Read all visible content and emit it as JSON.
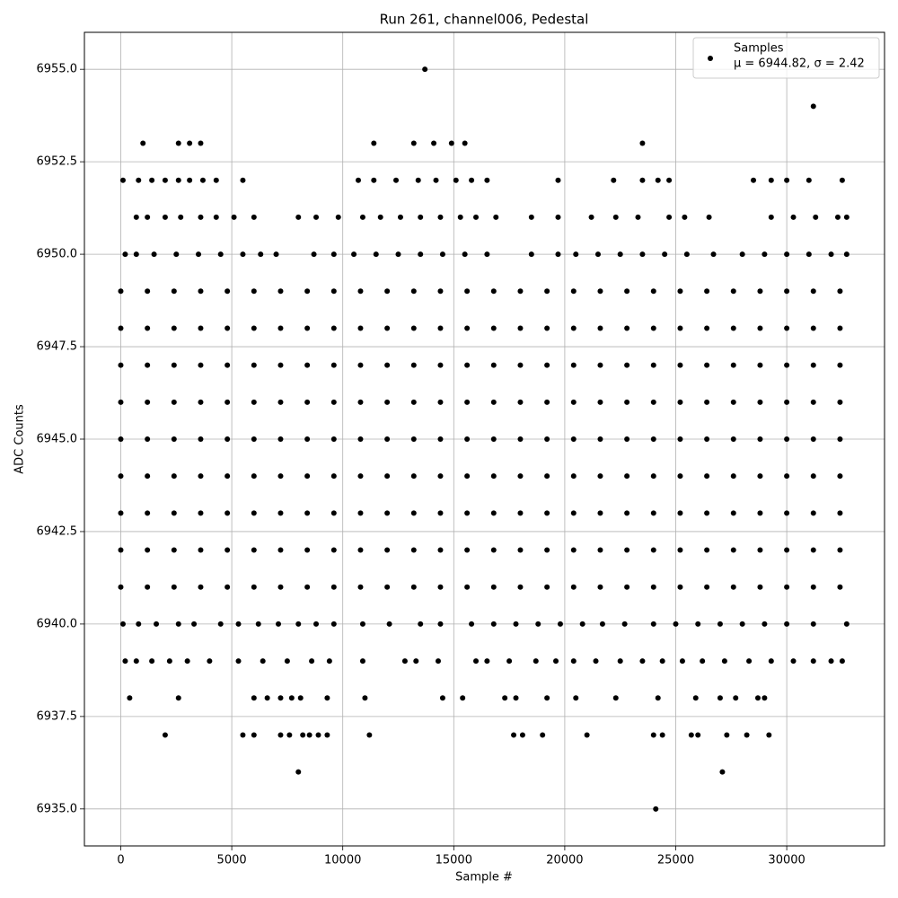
{
  "chart_data": {
    "type": "scatter",
    "title": "Run 261, channel006, Pedestal",
    "x_label": "Sample #",
    "y_label": "ADC Counts",
    "xlim": [
      -1638,
      34405
    ],
    "ylim": [
      6934,
      6956
    ],
    "xticks": [
      0,
      5000,
      10000,
      15000,
      20000,
      25000,
      30000
    ],
    "yticks": [
      {
        "value": 6935,
        "label": "6935.0"
      },
      {
        "value": 6937.5,
        "label": "6937.5"
      },
      {
        "value": 6940,
        "label": "6940.0"
      },
      {
        "value": 6942.5,
        "label": "6942.5"
      },
      {
        "value": 6945,
        "label": "6945.0"
      },
      {
        "value": 6947.5,
        "label": "6947.5"
      },
      {
        "value": 6950,
        "label": "6950.0"
      },
      {
        "value": 6952.5,
        "label": "6952.5"
      },
      {
        "value": 6955,
        "label": "6955.0"
      }
    ],
    "grid": true,
    "legend": "upper right",
    "legend_note": "μ = 6944.82, σ = 2.42",
    "series": [
      {
        "name": "Samples",
        "color": "#000000",
        "x": [
          0,
          1200,
          2400,
          3600,
          4800,
          6000,
          7200,
          8400,
          9600,
          10800,
          12000,
          13200,
          14400,
          15600,
          16800,
          18000,
          19200,
          20400,
          21600,
          22800,
          24000,
          25200,
          26400,
          27600,
          28800,
          30000,
          31200,
          32400,
          0,
          1200,
          2400,
          3600,
          4800,
          6000,
          7200,
          8400,
          9600,
          10800,
          12000,
          13200,
          14400,
          15600,
          16800,
          18000,
          19200,
          20400,
          21600,
          22800,
          24000,
          25200,
          26400,
          27600,
          28800,
          30000,
          31200,
          32400,
          0,
          1200,
          2400,
          3600,
          4800,
          6000,
          7200,
          8400,
          9600,
          10800,
          12000,
          13200,
          14400,
          15600,
          16800,
          18000,
          19200,
          20400,
          21600,
          22800,
          24000,
          25200,
          26400,
          27600,
          28800,
          30000,
          31200,
          32400,
          0,
          1200,
          2400,
          3600,
          4800,
          6000,
          7200,
          8400,
          9600,
          10800,
          12000,
          13200,
          14400,
          15600,
          16800,
          18000,
          19200,
          20400,
          21600,
          22800,
          24000,
          25200,
          26400,
          27600,
          28800,
          30000,
          31200,
          32400,
          0,
          1200,
          2400,
          3600,
          4800,
          6000,
          7200,
          8400,
          9600,
          10800,
          12000,
          13200,
          14400,
          15600,
          16800,
          18000,
          19200,
          20400,
          21600,
          22800,
          24000,
          25200,
          26400,
          27600,
          28800,
          30000,
          31200,
          32400,
          0,
          1200,
          2400,
          3600,
          4800,
          6000,
          7200,
          8400,
          9600,
          10800,
          12000,
          13200,
          14400,
          15600,
          16800,
          18000,
          19200,
          20400,
          21600,
          22800,
          24000,
          25200,
          26400,
          27600,
          28800,
          30000,
          31200,
          32400,
          0,
          1200,
          2400,
          3600,
          4800,
          6000,
          7200,
          8400,
          9600,
          10800,
          12000,
          13200,
          14400,
          15600,
          16800,
          18000,
          19200,
          20400,
          21600,
          22800,
          24000,
          25200,
          26400,
          27600,
          28800,
          30000,
          31200,
          32400,
          0,
          1200,
          2400,
          3600,
          4800,
          6000,
          7200,
          8400,
          9600,
          10800,
          12000,
          13200,
          14400,
          15600,
          16800,
          18000,
          19200,
          20400,
          21600,
          22800,
          24000,
          25200,
          26400,
          27600,
          28800,
          30000,
          31200,
          32400,
          0,
          1200,
          2400,
          3600,
          4800,
          6000,
          7200,
          8400,
          9600,
          10800,
          12000,
          13200,
          14400,
          15600,
          16800,
          18000,
          19200,
          20400,
          21600,
          22800,
          24000,
          25200,
          26400,
          27600,
          28800,
          30000,
          31200,
          32400,
          200,
          700,
          1500,
          2500,
          3500,
          4500,
          5500,
          6300,
          7000,
          8700,
          9600,
          10500,
          11500,
          12500,
          13500,
          14500,
          15500,
          16500,
          18500,
          19700,
          20500,
          21500,
          22500,
          23500,
          24500,
          25500,
          26700,
          28000,
          29000,
          30000,
          31000,
          32000,
          32700,
          100,
          800,
          1600,
          2600,
          3300,
          4500,
          5300,
          6200,
          7100,
          8000,
          8800,
          9600,
          10900,
          12100,
          13500,
          14400,
          15800,
          16800,
          17800,
          18800,
          19800,
          20800,
          21700,
          22700,
          24000,
          25000,
          26000,
          27000,
          28000,
          29000,
          30000,
          31200,
          32700,
          700,
          1200,
          2000,
          2700,
          3600,
          4300,
          5100,
          6000,
          8000,
          8800,
          9800,
          10900,
          11700,
          12600,
          13500,
          14400,
          15300,
          16000,
          16900,
          18500,
          19700,
          21200,
          22300,
          23300,
          24700,
          25400,
          26500,
          29300,
          30300,
          31300,
          32300,
          32700,
          200,
          700,
          1400,
          2200,
          3000,
          4000,
          5300,
          6400,
          7500,
          8600,
          9400,
          10900,
          12800,
          13300,
          14300,
          16000,
          16500,
          17500,
          18700,
          19600,
          20400,
          21400,
          22500,
          23500,
          24400,
          25300,
          26200,
          27200,
          28300,
          29300,
          30300,
          31200,
          32000,
          32500,
          100,
          800,
          1400,
          2000,
          2600,
          3100,
          3700,
          4300,
          5500,
          10700,
          11400,
          12400,
          13400,
          14200,
          15100,
          15800,
          16500,
          19700,
          22200,
          23500,
          24200,
          24700,
          28500,
          29300,
          30000,
          31000,
          32500,
          400,
          2600,
          6000,
          6600,
          7200,
          7700,
          8100,
          9300,
          11000,
          14500,
          15400,
          17300,
          17800,
          19200,
          20500,
          22300,
          24200,
          25900,
          27000,
          27700,
          28700,
          29000,
          1000,
          2600,
          3100,
          3600,
          11400,
          13200,
          14100,
          14900,
          15500,
          23500,
          2000,
          5500,
          6000,
          7200,
          7600,
          8200,
          8500,
          8900,
          9300,
          11200,
          17700,
          18100,
          19000,
          21000,
          24000,
          24400,
          25700,
          26000,
          27300,
          28200,
          29200,
          8000,
          27100,
          24100,
          31200,
          13700
        ],
        "values": [
          6941,
          6941,
          6941,
          6941,
          6941,
          6941,
          6941,
          6941,
          6941,
          6941,
          6941,
          6941,
          6941,
          6941,
          6941,
          6941,
          6941,
          6941,
          6941,
          6941,
          6941,
          6941,
          6941,
          6941,
          6941,
          6941,
          6941,
          6941,
          6942,
          6942,
          6942,
          6942,
          6942,
          6942,
          6942,
          6942,
          6942,
          6942,
          6942,
          6942,
          6942,
          6942,
          6942,
          6942,
          6942,
          6942,
          6942,
          6942,
          6942,
          6942,
          6942,
          6942,
          6942,
          6942,
          6942,
          6942,
          6943,
          6943,
          6943,
          6943,
          6943,
          6943,
          6943,
          6943,
          6943,
          6943,
          6943,
          6943,
          6943,
          6943,
          6943,
          6943,
          6943,
          6943,
          6943,
          6943,
          6943,
          6943,
          6943,
          6943,
          6943,
          6943,
          6943,
          6943,
          6944,
          6944,
          6944,
          6944,
          6944,
          6944,
          6944,
          6944,
          6944,
          6944,
          6944,
          6944,
          6944,
          6944,
          6944,
          6944,
          6944,
          6944,
          6944,
          6944,
          6944,
          6944,
          6944,
          6944,
          6944,
          6944,
          6944,
          6944,
          6945,
          6945,
          6945,
          6945,
          6945,
          6945,
          6945,
          6945,
          6945,
          6945,
          6945,
          6945,
          6945,
          6945,
          6945,
          6945,
          6945,
          6945,
          6945,
          6945,
          6945,
          6945,
          6945,
          6945,
          6945,
          6945,
          6945,
          6945,
          6946,
          6946,
          6946,
          6946,
          6946,
          6946,
          6946,
          6946,
          6946,
          6946,
          6946,
          6946,
          6946,
          6946,
          6946,
          6946,
          6946,
          6946,
          6946,
          6946,
          6946,
          6946,
          6946,
          6946,
          6946,
          6946,
          6946,
          6946,
          6947,
          6947,
          6947,
          6947,
          6947,
          6947,
          6947,
          6947,
          6947,
          6947,
          6947,
          6947,
          6947,
          6947,
          6947,
          6947,
          6947,
          6947,
          6947,
          6947,
          6947,
          6947,
          6947,
          6947,
          6947,
          6947,
          6947,
          6947,
          6948,
          6948,
          6948,
          6948,
          6948,
          6948,
          6948,
          6948,
          6948,
          6948,
          6948,
          6948,
          6948,
          6948,
          6948,
          6948,
          6948,
          6948,
          6948,
          6948,
          6948,
          6948,
          6948,
          6948,
          6948,
          6948,
          6948,
          6948,
          6949,
          6949,
          6949,
          6949,
          6949,
          6949,
          6949,
          6949,
          6949,
          6949,
          6949,
          6949,
          6949,
          6949,
          6949,
          6949,
          6949,
          6949,
          6949,
          6949,
          6949,
          6949,
          6949,
          6949,
          6949,
          6949,
          6949,
          6949,
          6950,
          6950,
          6950,
          6950,
          6950,
          6950,
          6950,
          6950,
          6950,
          6950,
          6950,
          6950,
          6950,
          6950,
          6950,
          6950,
          6950,
          6950,
          6950,
          6950,
          6950,
          6950,
          6950,
          6950,
          6950,
          6950,
          6950,
          6950,
          6950,
          6950,
          6950,
          6950,
          6950,
          6940,
          6940,
          6940,
          6940,
          6940,
          6940,
          6940,
          6940,
          6940,
          6940,
          6940,
          6940,
          6940,
          6940,
          6940,
          6940,
          6940,
          6940,
          6940,
          6940,
          6940,
          6940,
          6940,
          6940,
          6940,
          6940,
          6940,
          6940,
          6940,
          6940,
          6940,
          6940,
          6940,
          6951,
          6951,
          6951,
          6951,
          6951,
          6951,
          6951,
          6951,
          6951,
          6951,
          6951,
          6951,
          6951,
          6951,
          6951,
          6951,
          6951,
          6951,
          6951,
          6951,
          6951,
          6951,
          6951,
          6951,
          6951,
          6951,
          6951,
          6951,
          6951,
          6951,
          6951,
          6951,
          6939,
          6939,
          6939,
          6939,
          6939,
          6939,
          6939,
          6939,
          6939,
          6939,
          6939,
          6939,
          6939,
          6939,
          6939,
          6939,
          6939,
          6939,
          6939,
          6939,
          6939,
          6939,
          6939,
          6939,
          6939,
          6939,
          6939,
          6939,
          6939,
          6939,
          6939,
          6939,
          6939,
          6939,
          6952,
          6952,
          6952,
          6952,
          6952,
          6952,
          6952,
          6952,
          6952,
          6952,
          6952,
          6952,
          6952,
          6952,
          6952,
          6952,
          6952,
          6952,
          6952,
          6952,
          6952,
          6952,
          6952,
          6952,
          6952,
          6952,
          6952,
          6938,
          6938,
          6938,
          6938,
          6938,
          6938,
          6938,
          6938,
          6938,
          6938,
          6938,
          6938,
          6938,
          6938,
          6938,
          6938,
          6938,
          6938,
          6938,
          6938,
          6938,
          6938,
          6953,
          6953,
          6953,
          6953,
          6953,
          6953,
          6953,
          6953,
          6953,
          6953,
          6937,
          6937,
          6937,
          6937,
          6937,
          6937,
          6937,
          6937,
          6937,
          6937,
          6937,
          6937,
          6937,
          6937,
          6937,
          6937,
          6937,
          6937,
          6937,
          6937,
          6937,
          6936,
          6936,
          6935,
          6954,
          6955
        ]
      }
    ]
  }
}
